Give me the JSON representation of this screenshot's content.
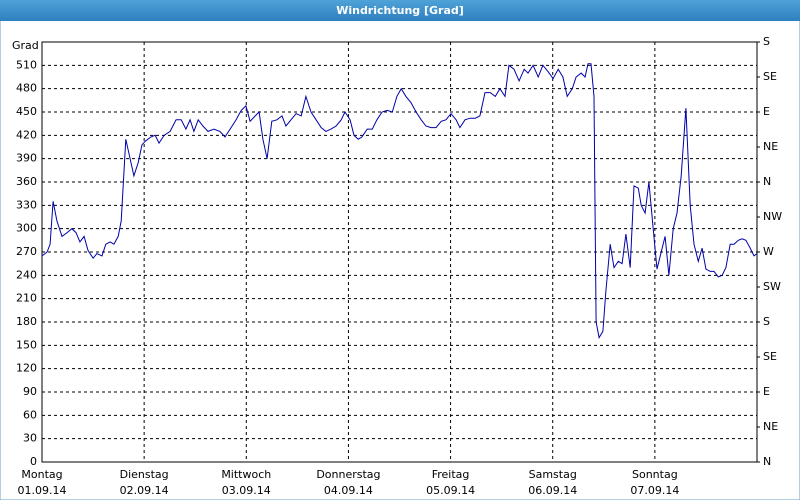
{
  "window_title": "Windrichtung [Grad]",
  "chart_data": {
    "type": "line",
    "ylabel": "Grad",
    "grid": true,
    "xlim": [
      0,
      168
    ],
    "xticks": [
      {
        "value": 0,
        "label": "Montag",
        "date": "01.09.14"
      },
      {
        "value": 24,
        "label": "Dienstag",
        "date": "02.09.14"
      },
      {
        "value": 48,
        "label": "Mittwoch",
        "date": "03.09.14"
      },
      {
        "value": 72,
        "label": "Donnerstag",
        "date": "04.09.14"
      },
      {
        "value": 96,
        "label": "Freitag",
        "date": "05.09.14"
      },
      {
        "value": 120,
        "label": "Samstag",
        "date": "06.09.14"
      },
      {
        "value": 144,
        "label": "Sonntag",
        "date": "07.09.14"
      }
    ],
    "ylim": [
      0,
      540
    ],
    "yticks": [
      0,
      30,
      60,
      90,
      120,
      150,
      180,
      210,
      240,
      270,
      300,
      330,
      360,
      390,
      420,
      450,
      480,
      510
    ],
    "y2lim": [
      0,
      540
    ],
    "y2ticks": [
      {
        "value": 0,
        "label": "N"
      },
      {
        "value": 45,
        "label": "NE"
      },
      {
        "value": 90,
        "label": "E"
      },
      {
        "value": 135,
        "label": "SE"
      },
      {
        "value": 180,
        "label": "S"
      },
      {
        "value": 225,
        "label": "SW"
      },
      {
        "value": 270,
        "label": "W"
      },
      {
        "value": 315,
        "label": "NW"
      },
      {
        "value": 360,
        "label": "N"
      },
      {
        "value": 405,
        "label": "NE"
      },
      {
        "value": 450,
        "label": "E"
      },
      {
        "value": 495,
        "label": "SE"
      },
      {
        "value": 540,
        "label": "S"
      }
    ],
    "series": [
      {
        "color": "#0000aa",
        "x": [
          0,
          1.2,
          1.9,
          2.6,
          3.5,
          4.7,
          5.9,
          7.0,
          8.0,
          8.9,
          9.9,
          10.8,
          12.0,
          12.9,
          14.1,
          15.0,
          16.0,
          16.9,
          17.9,
          18.6,
          19.7,
          20.7,
          21.6,
          22.6,
          23.5,
          24.4,
          25.6,
          26.6,
          27.5,
          28.7,
          30.1,
          31.5,
          32.7,
          33.8,
          34.8,
          35.7,
          36.7,
          37.8,
          39.0,
          40.4,
          41.8,
          43.0,
          44.2,
          45.6,
          46.8,
          47.9,
          48.9,
          50.1,
          51.0,
          51.9,
          52.9,
          54.0,
          55.2,
          56.4,
          57.3,
          58.5,
          59.7,
          60.9,
          62.0,
          63.2,
          64.4,
          65.6,
          66.7,
          67.9,
          69.1,
          70.3,
          71.2,
          72.4,
          73.3,
          74.3,
          75.2,
          76.4,
          77.6,
          78.7,
          79.9,
          81.1,
          82.3,
          83.4,
          84.4,
          85.5,
          86.7,
          87.9,
          89.1,
          90.2,
          91.4,
          92.6,
          93.8,
          94.9,
          96.1,
          97.3,
          98.2,
          99.4,
          100.6,
          101.8,
          102.9,
          104.1,
          105.3,
          106.5,
          107.6,
          108.8,
          109.7,
          110.9,
          112.1,
          113.3,
          114.2,
          115.4,
          116.6,
          117.7,
          118.9,
          120.1,
          121.3,
          122.4,
          123.4,
          124.6,
          125.5,
          126.7,
          127.6,
          128.3,
          129.0,
          129.7,
          130.2,
          130.9,
          131.8,
          132.5,
          133.5,
          134.4,
          135.4,
          136.3,
          137.2,
          138.2,
          139.1,
          140.1,
          140.8,
          141.7,
          142.6,
          143.6,
          144.5,
          145.5,
          146.4,
          147.3,
          148.3,
          149.2,
          150.2,
          151.3,
          152.3,
          153.2,
          154.2,
          155.1,
          156.0,
          157.0,
          157.9,
          158.9,
          159.8,
          160.7,
          161.7,
          162.6,
          163.6,
          164.5,
          165.4,
          166.4,
          167.3,
          168.0
        ],
        "values": [
          265,
          270,
          280,
          335,
          310,
          290,
          295,
          300,
          295,
          283,
          290,
          272,
          262,
          268,
          265,
          280,
          283,
          280,
          290,
          310,
          415,
          390,
          368,
          385,
          408,
          413,
          418,
          420,
          410,
          420,
          425,
          440,
          440,
          428,
          440,
          425,
          440,
          432,
          425,
          428,
          425,
          418,
          428,
          440,
          452,
          458,
          438,
          445,
          450,
          415,
          390,
          438,
          440,
          445,
          432,
          440,
          448,
          445,
          470,
          450,
          440,
          430,
          425,
          428,
          432,
          440,
          450,
          440,
          420,
          415,
          418,
          428,
          428,
          440,
          450,
          452,
          450,
          470,
          480,
          470,
          462,
          450,
          440,
          432,
          430,
          430,
          438,
          440,
          448,
          440,
          430,
          440,
          442,
          442,
          445,
          475,
          475,
          470,
          480,
          470,
          510,
          505,
          490,
          505,
          500,
          510,
          495,
          510,
          502,
          493,
          505,
          495,
          470,
          480,
          495,
          500,
          495,
          512,
          512,
          470,
          180,
          160,
          168,
          220,
          280,
          250,
          258,
          255,
          293,
          250,
          355,
          352,
          330,
          320,
          360,
          300,
          248,
          270,
          290,
          240,
          300,
          320,
          368,
          455,
          330,
          280,
          258,
          275,
          248,
          245,
          245,
          238,
          240,
          250,
          280,
          280,
          285,
          287,
          285,
          275,
          265,
          268
        ]
      }
    ]
  }
}
